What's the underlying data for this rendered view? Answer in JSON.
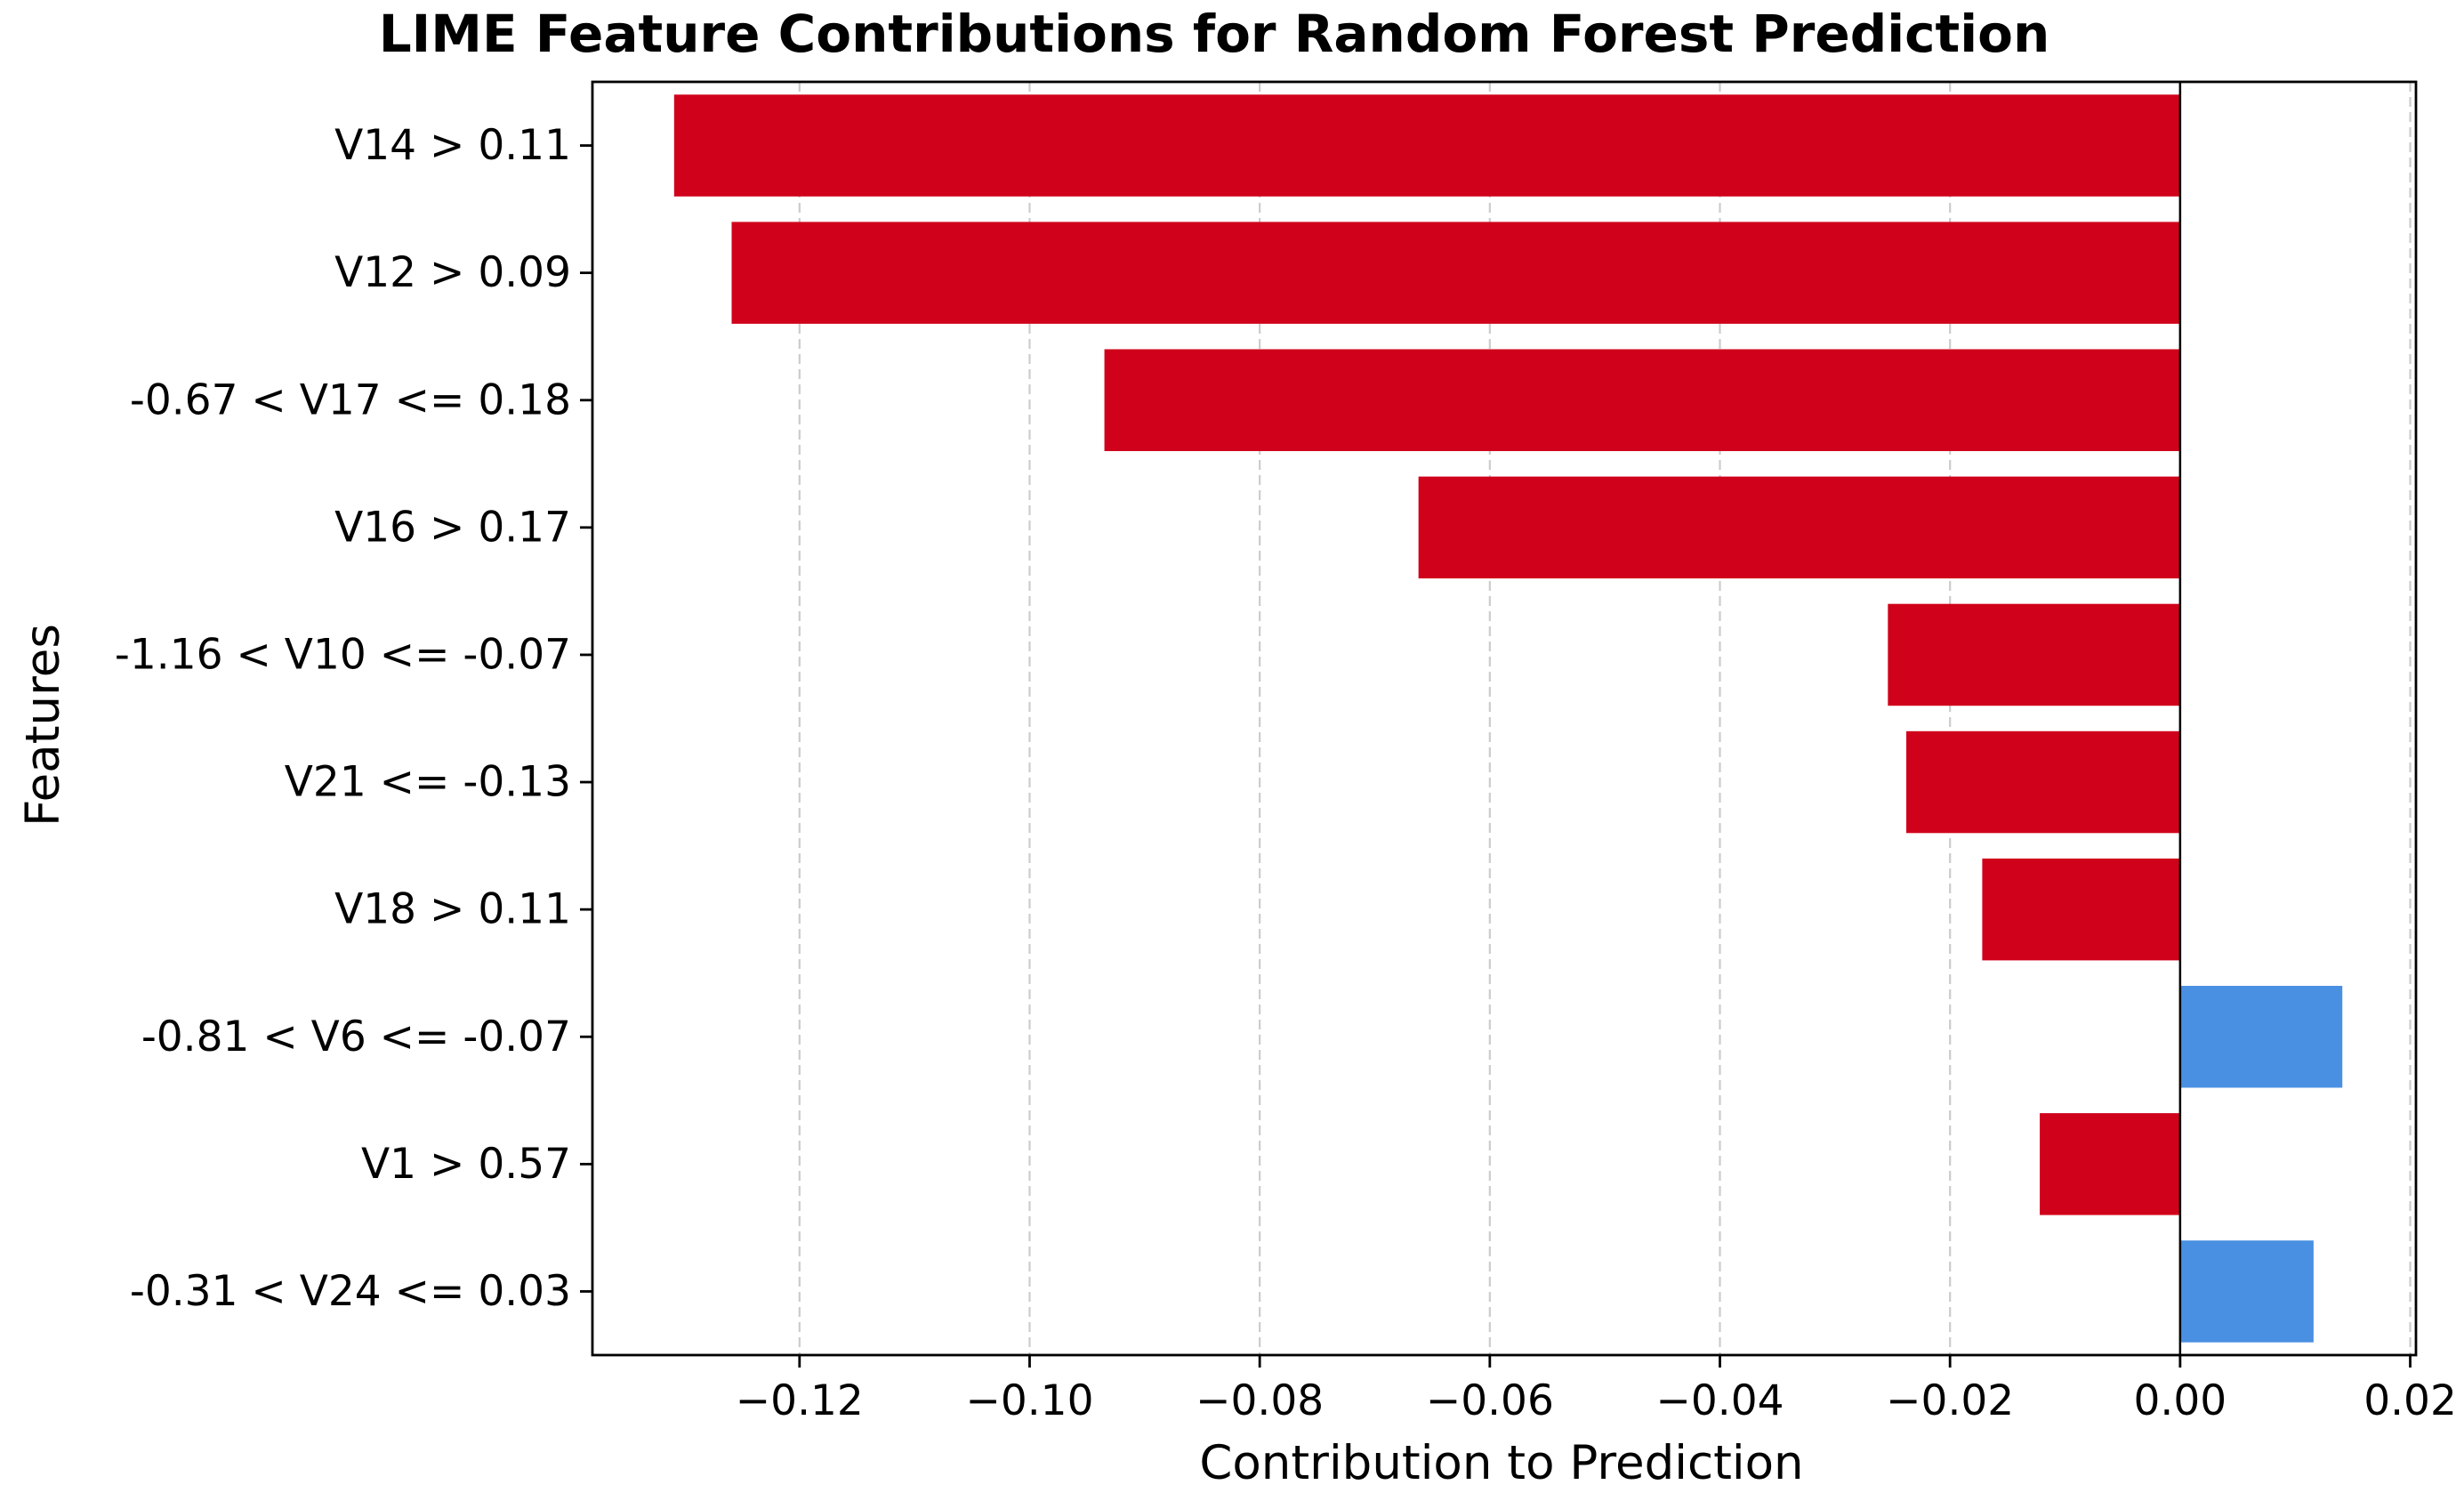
{
  "chart_data": {
    "type": "bar",
    "orientation": "horizontal",
    "title": "LIME Feature Contributions for Random Forest Prediction",
    "xlabel": "Contribution to Prediction",
    "ylabel": "Features",
    "categories": [
      "V14 > 0.11",
      "V12 > 0.09",
      "-0.67 < V17 <= 0.18",
      "V16 > 0.17",
      "-1.16 < V10 <= -0.07",
      "V21 <= -0.13",
      "V18 > 0.11",
      "-0.81 < V6 <= -0.07",
      "V1 > 0.57",
      "-0.31 < V24 <= 0.03"
    ],
    "values": [
      -0.1309,
      -0.1259,
      -0.0935,
      -0.0662,
      -0.0254,
      -0.0238,
      -0.0172,
      0.0141,
      -0.0122,
      0.0116
    ],
    "xlim": [
      -0.138,
      0.0205
    ],
    "xticks": [
      -0.12,
      -0.1,
      -0.08,
      -0.06,
      -0.04,
      -0.02,
      0.0,
      0.02
    ],
    "xtick_labels": [
      "−0.12",
      "−0.10",
      "−0.08",
      "−0.06",
      "−0.04",
      "−0.02",
      "0.00",
      "0.02"
    ],
    "grid": "x-dashed",
    "colors": {
      "negative": "#d0021b",
      "positive": "#4a90e2",
      "zero_line": "#000000",
      "grid": "#cccccc"
    }
  }
}
